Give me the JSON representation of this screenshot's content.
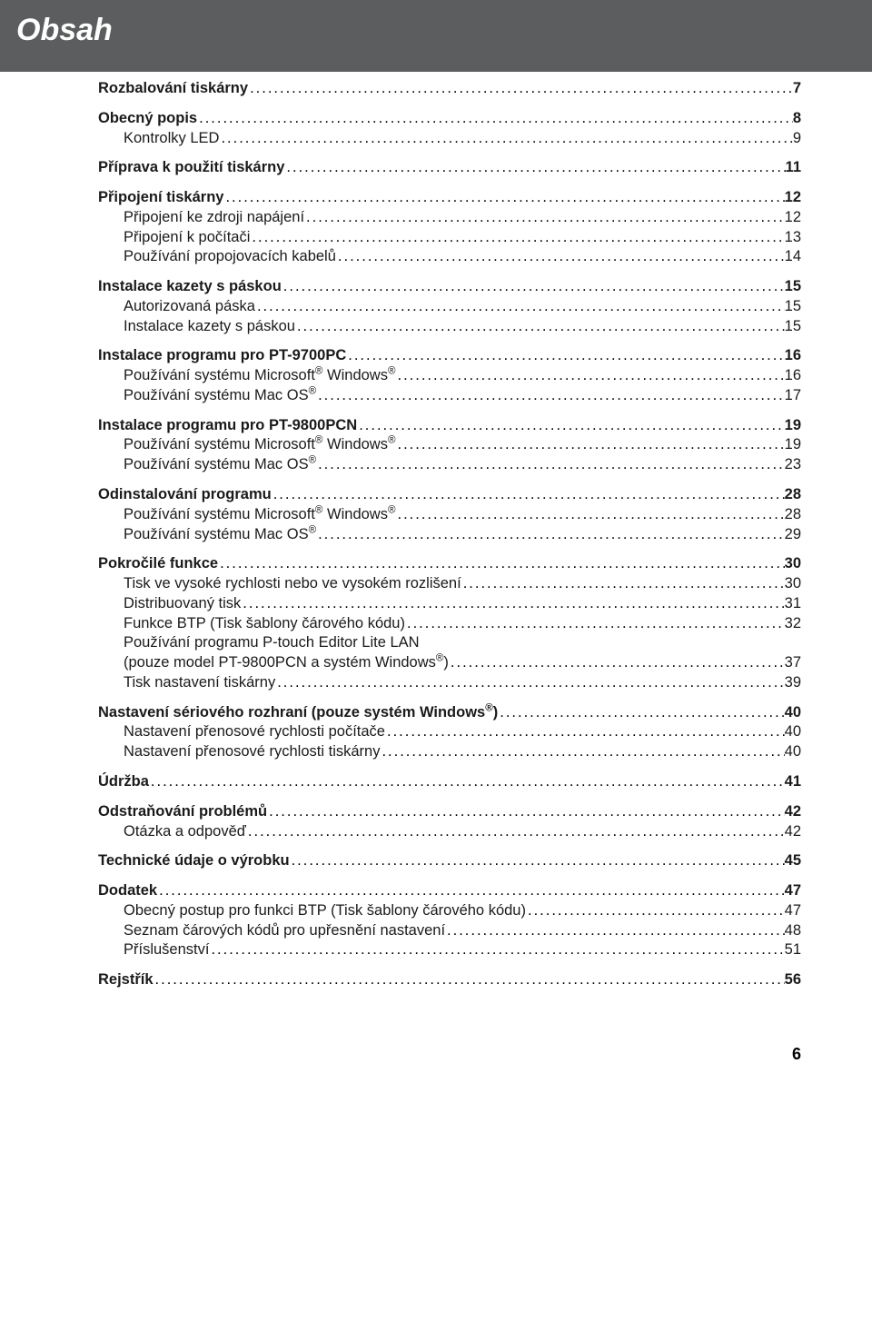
{
  "header": {
    "title": "Obsah"
  },
  "dots": "............................................................................................................................................................................................................................",
  "toc": [
    {
      "level": 1,
      "label": "Rozbalování tiskárny",
      "page": "7"
    },
    {
      "level": 1,
      "label": "Obecný popis",
      "page": "8"
    },
    {
      "level": 2,
      "label": "Kontrolky LED",
      "page": "9"
    },
    {
      "level": 1,
      "label": "Příprava k použití tiskárny",
      "page": "11"
    },
    {
      "level": 1,
      "label": "Připojení tiskárny",
      "page": "12"
    },
    {
      "level": 2,
      "label": "Připojení ke zdroji napájení",
      "page": "12"
    },
    {
      "level": 2,
      "label": "Připojení k počítači",
      "page": "13"
    },
    {
      "level": 2,
      "label": "Používání propojovacích kabelů",
      "page": "14"
    },
    {
      "level": 1,
      "label": "Instalace kazety s páskou",
      "page": "15"
    },
    {
      "level": 2,
      "label": "Autorizovaná páska",
      "page": "15"
    },
    {
      "level": 2,
      "label": "Instalace kazety s páskou",
      "page": "15"
    },
    {
      "level": 1,
      "label": "Instalace programu pro PT-9700PC",
      "page": "16"
    },
    {
      "level": 2,
      "label_html": "Používání systému Microsoft<sup>®</sup> Windows<sup>®</sup>",
      "page": "16"
    },
    {
      "level": 2,
      "label_html": "Používání systému Mac OS<sup>®</sup>",
      "page": "17"
    },
    {
      "level": 1,
      "label": "Instalace programu pro PT-9800PCN",
      "page": "19"
    },
    {
      "level": 2,
      "label_html": "Používání systému Microsoft<sup>®</sup> Windows<sup>®</sup>",
      "page": "19"
    },
    {
      "level": 2,
      "label_html": "Používání systému Mac OS<sup>®</sup>",
      "page": "23"
    },
    {
      "level": 1,
      "label": "Odinstalování programu",
      "page": "28"
    },
    {
      "level": 2,
      "label_html": "Používání systému Microsoft<sup>®</sup> Windows<sup>®</sup>",
      "page": "28"
    },
    {
      "level": 2,
      "label_html": "Používání systému Mac OS<sup>®</sup>",
      "page": "29"
    },
    {
      "level": 1,
      "label": "Pokročilé funkce",
      "page": "30"
    },
    {
      "level": 2,
      "label": "Tisk ve vysoké rychlosti nebo ve vysokém rozlišení",
      "page": "30"
    },
    {
      "level": 2,
      "label": "Distribuovaný tisk",
      "page": "31"
    },
    {
      "level": 2,
      "label": "Funkce BTP (Tisk šablony čárového kódu)",
      "page": "32"
    },
    {
      "level": 2,
      "multiline": true,
      "line1_html": "Používání programu P-touch Editor Lite LAN",
      "line2_html": "(pouze model PT-9800PCN a systém Windows<sup>®</sup>)",
      "page": "37"
    },
    {
      "level": 2,
      "label": "Tisk nastavení tiskárny",
      "page": "39"
    },
    {
      "level": 1,
      "label_html": "Nastavení sériového rozhraní (pouze systém Windows<sup>®</sup>)",
      "page": "40"
    },
    {
      "level": 2,
      "label": "Nastavení přenosové rychlosti počítače",
      "page": "40"
    },
    {
      "level": 2,
      "label": "Nastavení přenosové rychlosti tiskárny",
      "page": "40"
    },
    {
      "level": 1,
      "label": "Údržba",
      "page": "41"
    },
    {
      "level": 1,
      "label": "Odstraňování problémů",
      "page": "42"
    },
    {
      "level": 2,
      "label": "Otázka a odpověď",
      "page": "42"
    },
    {
      "level": 1,
      "label": "Technické údaje o výrobku",
      "page": "45"
    },
    {
      "level": 1,
      "label": "Dodatek",
      "page": "47"
    },
    {
      "level": 2,
      "label": "Obecný postup pro funkci BTP (Tisk šablony čárového kódu)",
      "page": "47"
    },
    {
      "level": 2,
      "label": "Seznam čárových kódů pro upřesnění nastavení",
      "page": "48"
    },
    {
      "level": 2,
      "label": "Příslušenství",
      "page": "51"
    },
    {
      "level": 1,
      "label": "Rejstřík",
      "page": "56"
    }
  ],
  "page_number": "6"
}
